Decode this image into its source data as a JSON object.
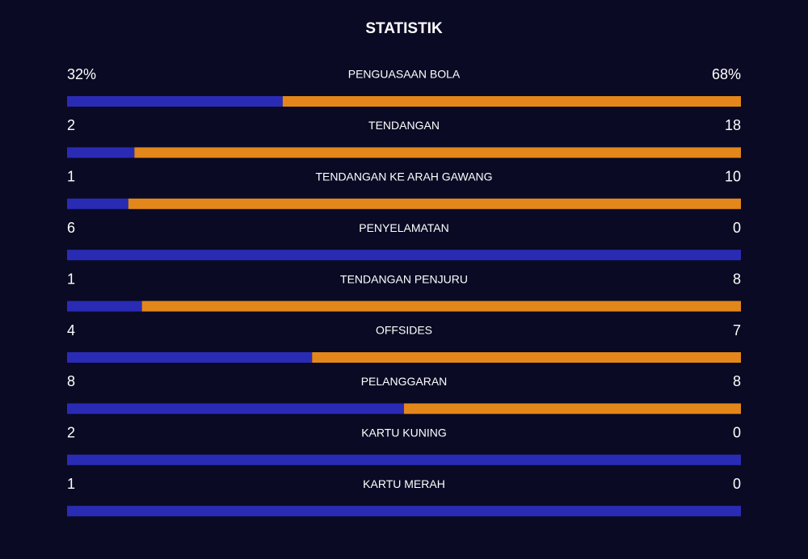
{
  "title": "STATISTIK",
  "stats": [
    {
      "label": "PENGUASAAN BOLA",
      "home": 32,
      "away": 68,
      "home_label": "32%",
      "away_label": "68%"
    },
    {
      "label": "TENDANGAN",
      "home": 2,
      "away": 18
    },
    {
      "label": "TENDANGAN KE ARAH GAWANG",
      "home": 1,
      "away": 10
    },
    {
      "label": "PENYELAMATAN",
      "home": 6,
      "away": 0
    },
    {
      "label": "TENDANGAN PENJURU",
      "home": 1,
      "away": 8
    },
    {
      "label": "OFFSIDES",
      "home": 4,
      "away": 7
    },
    {
      "label": "PELANGGARAN",
      "home": 8,
      "away": 8
    },
    {
      "label": "KARTU KUNING",
      "home": 2,
      "away": 0
    },
    {
      "label": "KARTU MERAH",
      "home": 1,
      "away": 0
    }
  ],
  "home_color": "#2a2bb5",
  "away_color": "#e3871b"
}
